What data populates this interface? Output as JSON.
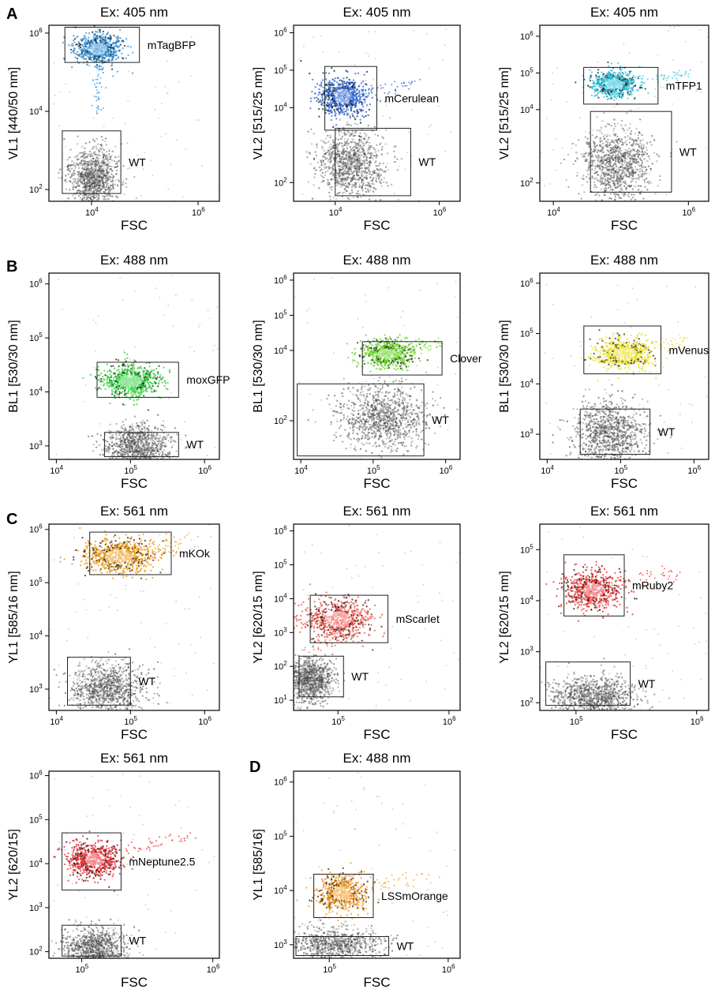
{
  "colors": {
    "wt": "#555555",
    "mTagBFP": "#2f8fd8",
    "mCerulean": "#2a63d0",
    "mTFP1": "#2cc2dc",
    "moxGFP": "#2ed13a",
    "Clover": "#66d424",
    "mVenus": "#e8dd1e",
    "mKOk": "#e8940f",
    "mScarlet": "#ef5347",
    "mRuby2": "#e9322f",
    "mNeptune2.5": "#e52a2f",
    "LSSmOrange": "#f3941c"
  },
  "panel_letters": [
    "A",
    "B",
    "C",
    "D"
  ],
  "chart_data": [
    {
      "type": "scatter",
      "title": "Ex: 405 nm",
      "xlabel": "FSC",
      "ylabel": "VL1 [440/50 nm]",
      "xlim": [
        3.2,
        6.4
      ],
      "ylim": [
        1.7,
        6.2
      ],
      "x_ticks": [
        4,
        6
      ],
      "y_ticks": [
        2,
        4,
        6
      ],
      "populations": [
        {
          "name": "mTagBFP",
          "color_key": "mTagBFP",
          "n": 650,
          "center": [
            4.12,
            5.6
          ],
          "spread": [
            0.22,
            0.2
          ],
          "tail_to": [
            4.1,
            4.0
          ]
        },
        {
          "name": "WT",
          "color_key": "wt",
          "n": 1000,
          "center": [
            4.05,
            2.3
          ],
          "spread": [
            0.22,
            0.38
          ]
        }
      ],
      "gates": [
        {
          "label": "mTagBFP",
          "x": [
            3.5,
            4.9
          ],
          "y": [
            5.25,
            6.15
          ]
        },
        {
          "label": "WT",
          "x": [
            3.45,
            4.55
          ],
          "y": [
            1.9,
            3.5
          ]
        }
      ]
    },
    {
      "type": "scatter",
      "title": "Ex: 405 nm",
      "xlabel": "FSC",
      "ylabel": "VL2 [515/25 nm]",
      "xlim": [
        3.2,
        6.4
      ],
      "ylim": [
        1.5,
        6.2
      ],
      "x_ticks": [
        4,
        6
      ],
      "y_ticks": [
        2,
        4,
        5,
        6
      ],
      "populations": [
        {
          "name": "mCerulean",
          "color_key": "mCerulean",
          "n": 700,
          "center": [
            4.15,
            4.3
          ],
          "spread": [
            0.22,
            0.25
          ],
          "tail_to": [
            5.6,
            4.7
          ]
        },
        {
          "name": "WT",
          "color_key": "wt",
          "n": 1000,
          "center": [
            4.3,
            2.5
          ],
          "spread": [
            0.32,
            0.45
          ]
        }
      ],
      "gates": [
        {
          "label": "mCerulean",
          "x": [
            3.8,
            4.8
          ],
          "y": [
            3.4,
            5.1
          ]
        },
        {
          "label": "WT",
          "x": [
            4.0,
            5.45
          ],
          "y": [
            1.65,
            3.45
          ]
        }
      ]
    },
    {
      "type": "scatter",
      "title": "Ex: 405 nm",
      "xlabel": "FSC",
      "ylabel": "VL2 [515/25 nm]",
      "xlim": [
        3.8,
        6.3
      ],
      "ylim": [
        1.5,
        6.3
      ],
      "x_ticks": [
        4,
        6
      ],
      "y_ticks": [
        2,
        4,
        5,
        6
      ],
      "populations": [
        {
          "name": "mTFP1",
          "color_key": "mTFP1",
          "n": 650,
          "center": [
            4.9,
            4.7
          ],
          "spread": [
            0.17,
            0.17
          ],
          "tail_to": [
            6.0,
            5.0
          ]
        },
        {
          "name": "WT",
          "color_key": "wt",
          "n": 1000,
          "center": [
            4.95,
            2.5
          ],
          "spread": [
            0.25,
            0.5
          ]
        }
      ],
      "gates": [
        {
          "label": "mTFP1",
          "x": [
            4.45,
            5.55
          ],
          "y": [
            4.15,
            5.15
          ]
        },
        {
          "label": "WT",
          "x": [
            4.55,
            5.75
          ],
          "y": [
            1.75,
            3.95
          ]
        }
      ]
    },
    {
      "type": "scatter",
      "title": "Ex: 488 nm",
      "xlabel": "FSC",
      "ylabel": "BL1 [530/30 nm]",
      "xlim": [
        3.9,
        6.2
      ],
      "ylim": [
        2.75,
        6.2
      ],
      "x_ticks": [
        4,
        5,
        6
      ],
      "y_ticks": [
        3,
        4,
        5,
        6
      ],
      "populations": [
        {
          "name": "moxGFP",
          "color_key": "moxGFP",
          "n": 750,
          "center": [
            5.0,
            4.2
          ],
          "spread": [
            0.2,
            0.15
          ]
        },
        {
          "name": "WT",
          "color_key": "wt",
          "n": 1000,
          "center": [
            5.1,
            2.95
          ],
          "spread": [
            0.22,
            0.22
          ]
        }
      ],
      "gates": [
        {
          "label": "moxGFP",
          "x": [
            4.55,
            5.65
          ],
          "y": [
            3.9,
            4.55
          ]
        },
        {
          "label": "WT",
          "x": [
            4.65,
            5.65
          ],
          "y": [
            2.8,
            3.25
          ]
        }
      ]
    },
    {
      "type": "scatter",
      "title": "Ex: 488 nm",
      "xlabel": "FSC",
      "ylabel": "BL1 [530/30 nm]",
      "xlim": [
        3.9,
        6.2
      ],
      "ylim": [
        0.9,
        6.2
      ],
      "x_ticks": [
        4,
        5,
        6
      ],
      "y_ticks": [
        2,
        4,
        5,
        6
      ],
      "populations": [
        {
          "name": "Clover",
          "color_key": "Clover",
          "n": 650,
          "center": [
            5.2,
            3.9
          ],
          "spread": [
            0.18,
            0.2
          ],
          "tail_to": [
            5.9,
            4.2
          ]
        },
        {
          "name": "WT",
          "color_key": "wt",
          "n": 1000,
          "center": [
            5.15,
            2.1
          ],
          "spread": [
            0.3,
            0.45
          ]
        }
      ],
      "gates": [
        {
          "label": "Clover",
          "x": [
            4.85,
            5.95
          ],
          "y": [
            3.3,
            4.25
          ]
        },
        {
          "label": "WT",
          "x": [
            3.95,
            5.7
          ],
          "y": [
            1.0,
            3.05
          ]
        }
      ]
    },
    {
      "type": "scatter",
      "title": "Ex: 488 nm",
      "xlabel": "FSC",
      "ylabel": "BL1 [530/30 nm]",
      "xlim": [
        3.9,
        6.2
      ],
      "ylim": [
        2.5,
        6.2
      ],
      "x_ticks": [
        4,
        5,
        6
      ],
      "y_ticks": [
        3,
        4,
        5,
        6
      ],
      "populations": [
        {
          "name": "mVenus",
          "color_key": "mVenus",
          "n": 650,
          "center": [
            5.05,
            4.6
          ],
          "spread": [
            0.2,
            0.15
          ],
          "tail_to": [
            5.9,
            4.9
          ]
        },
        {
          "name": "WT",
          "color_key": "wt",
          "n": 1000,
          "center": [
            4.85,
            3.0
          ],
          "spread": [
            0.25,
            0.33
          ]
        }
      ],
      "gates": [
        {
          "label": "mVenus",
          "x": [
            4.5,
            5.55
          ],
          "y": [
            4.2,
            5.15
          ]
        },
        {
          "label": "WT",
          "x": [
            4.45,
            5.4
          ],
          "y": [
            2.6,
            3.5
          ]
        }
      ]
    },
    {
      "type": "scatter",
      "title": "Ex: 561 nm",
      "xlabel": "FSC",
      "ylabel": "YL1 [585/16 nm]",
      "xlim": [
        3.9,
        6.2
      ],
      "ylim": [
        2.6,
        6.1
      ],
      "x_ticks": [
        4,
        5,
        6
      ],
      "y_ticks": [
        3,
        4,
        5,
        6
      ],
      "populations": [
        {
          "name": "mKOk",
          "color_key": "mKOk",
          "n": 750,
          "center": [
            4.85,
            5.5
          ],
          "spread": [
            0.25,
            0.15
          ],
          "tail_to": [
            5.8,
            5.8
          ]
        },
        {
          "name": "WT",
          "color_key": "wt",
          "n": 1000,
          "center": [
            4.7,
            3.0
          ],
          "spread": [
            0.25,
            0.25
          ]
        }
      ],
      "gates": [
        {
          "label": "mKOk",
          "x": [
            4.45,
            5.55
          ],
          "y": [
            5.15,
            5.95
          ]
        },
        {
          "label": "WT",
          "x": [
            4.15,
            5.0
          ],
          "y": [
            2.7,
            3.6
          ]
        }
      ]
    },
    {
      "type": "scatter",
      "title": "Ex: 561 nm",
      "xlabel": "FSC",
      "ylabel": "YL2 [620/15 nm]",
      "xlim": [
        4.6,
        6.1
      ],
      "ylim": [
        0.7,
        6.2
      ],
      "x_ticks": [
        5,
        6
      ],
      "y_ticks": [
        1,
        2,
        3,
        4,
        5,
        6
      ],
      "populations": [
        {
          "name": "mScarlet",
          "color_key": "mScarlet",
          "n": 700,
          "center": [
            5.0,
            3.4
          ],
          "spread": [
            0.15,
            0.3
          ],
          "tail_to": [
            4.8,
            2.3
          ]
        },
        {
          "name": "WT",
          "color_key": "wt",
          "n": 1000,
          "center": [
            4.75,
            1.6
          ],
          "spread": [
            0.1,
            0.3
          ]
        }
      ],
      "gates": [
        {
          "label": "mScarlet",
          "x": [
            4.75,
            5.45
          ],
          "y": [
            2.7,
            4.1
          ]
        },
        {
          "label": "WT",
          "x": [
            4.65,
            5.05
          ],
          "y": [
            1.1,
            2.3
          ]
        }
      ]
    },
    {
      "type": "scatter",
      "title": "Ex: 561 nm",
      "xlabel": "FSC",
      "ylabel": "YL2 [620/15 nm]",
      "xlim": [
        4.7,
        6.1
      ],
      "ylim": [
        1.85,
        5.5
      ],
      "x_ticks": [
        5,
        6
      ],
      "y_ticks": [
        2,
        3,
        4,
        5
      ],
      "populations": [
        {
          "name": "mRuby2",
          "color_key": "mRuby2",
          "n": 650,
          "center": [
            5.15,
            4.2
          ],
          "spread": [
            0.12,
            0.18
          ],
          "tail_to": [
            5.9,
            4.6
          ]
        },
        {
          "name": "WT",
          "color_key": "wt",
          "n": 1000,
          "center": [
            5.15,
            2.1
          ],
          "spread": [
            0.18,
            0.2
          ]
        }
      ],
      "gates": [
        {
          "label": "mRuby2",
          "x": [
            4.9,
            5.4
          ],
          "y": [
            3.7,
            4.9
          ]
        },
        {
          "label": "WT",
          "x": [
            4.75,
            5.45
          ],
          "y": [
            1.95,
            2.8
          ]
        }
      ]
    },
    {
      "type": "scatter",
      "title": "Ex: 561 nm",
      "xlabel": "FSC",
      "ylabel": "YL2 [620/15]",
      "xlim": [
        4.75,
        6.05
      ],
      "ylim": [
        1.85,
        6.1
      ],
      "x_ticks": [
        5,
        6
      ],
      "y_ticks": [
        2,
        3,
        4,
        5,
        6
      ],
      "populations": [
        {
          "name": "mNeptune2.5",
          "color_key": "mNeptune2.5",
          "n": 650,
          "center": [
            5.1,
            4.1
          ],
          "spread": [
            0.1,
            0.2
          ],
          "tail_to": [
            5.8,
            4.6
          ]
        },
        {
          "name": "WT",
          "color_key": "wt",
          "n": 1000,
          "center": [
            5.1,
            2.05
          ],
          "spread": [
            0.12,
            0.25
          ]
        }
      ],
      "gates": [
        {
          "label": "mNeptune2.5",
          "x": [
            4.85,
            5.3
          ],
          "y": [
            3.4,
            4.7
          ]
        },
        {
          "label": "WT",
          "x": [
            4.85,
            5.3
          ],
          "y": [
            1.9,
            2.6
          ]
        }
      ]
    },
    {
      "type": "scatter",
      "title": "Ex: 488 nm",
      "xlabel": "FSC",
      "ylabel": "YL1 [585/16]",
      "xlim": [
        4.7,
        6.1
      ],
      "ylim": [
        2.75,
        6.2
      ],
      "x_ticks": [
        5,
        6
      ],
      "y_ticks": [
        3,
        4,
        5,
        6
      ],
      "populations": [
        {
          "name": "LSSmOrange",
          "color_key": "LSSmOrange",
          "n": 600,
          "center": [
            5.1,
            3.95
          ],
          "spread": [
            0.1,
            0.17
          ],
          "tail_to": [
            5.8,
            4.3
          ]
        },
        {
          "name": "WT",
          "color_key": "wt",
          "n": 800,
          "center": [
            5.05,
            3.0
          ],
          "spread": [
            0.2,
            0.15
          ]
        }
      ],
      "gates": [
        {
          "label": "LSSmOrange",
          "x": [
            4.87,
            5.37
          ],
          "y": [
            3.5,
            4.3
          ]
        },
        {
          "label": "WT",
          "x": [
            4.72,
            5.5
          ],
          "y": [
            2.8,
            3.15
          ]
        }
      ]
    }
  ]
}
